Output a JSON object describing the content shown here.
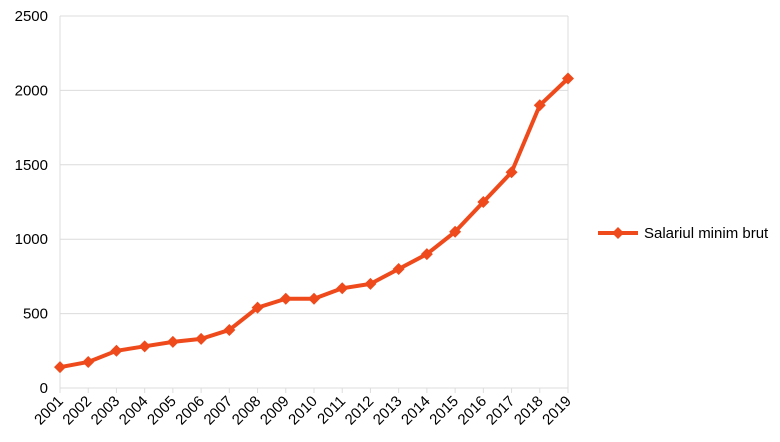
{
  "chart_data": {
    "type": "line",
    "x": [
      "2001",
      "2002",
      "2003",
      "2004",
      "2005",
      "2006",
      "2007",
      "2008",
      "2009",
      "2010",
      "2011",
      "2012",
      "2013",
      "2014",
      "2015",
      "2016",
      "2017",
      "2018",
      "2019"
    ],
    "series": [
      {
        "name": "Salariul minim brut",
        "color": "#ee4a1c",
        "values": [
          140,
          175,
          250,
          280,
          310,
          330,
          390,
          540,
          600,
          600,
          670,
          700,
          800,
          900,
          1050,
          1250,
          1450,
          1900,
          2080
        ]
      }
    ],
    "ylim": [
      0,
      2500
    ],
    "yticks": [
      0,
      500,
      1000,
      1500,
      2000,
      2500
    ],
    "grid": true,
    "legend": "right"
  }
}
